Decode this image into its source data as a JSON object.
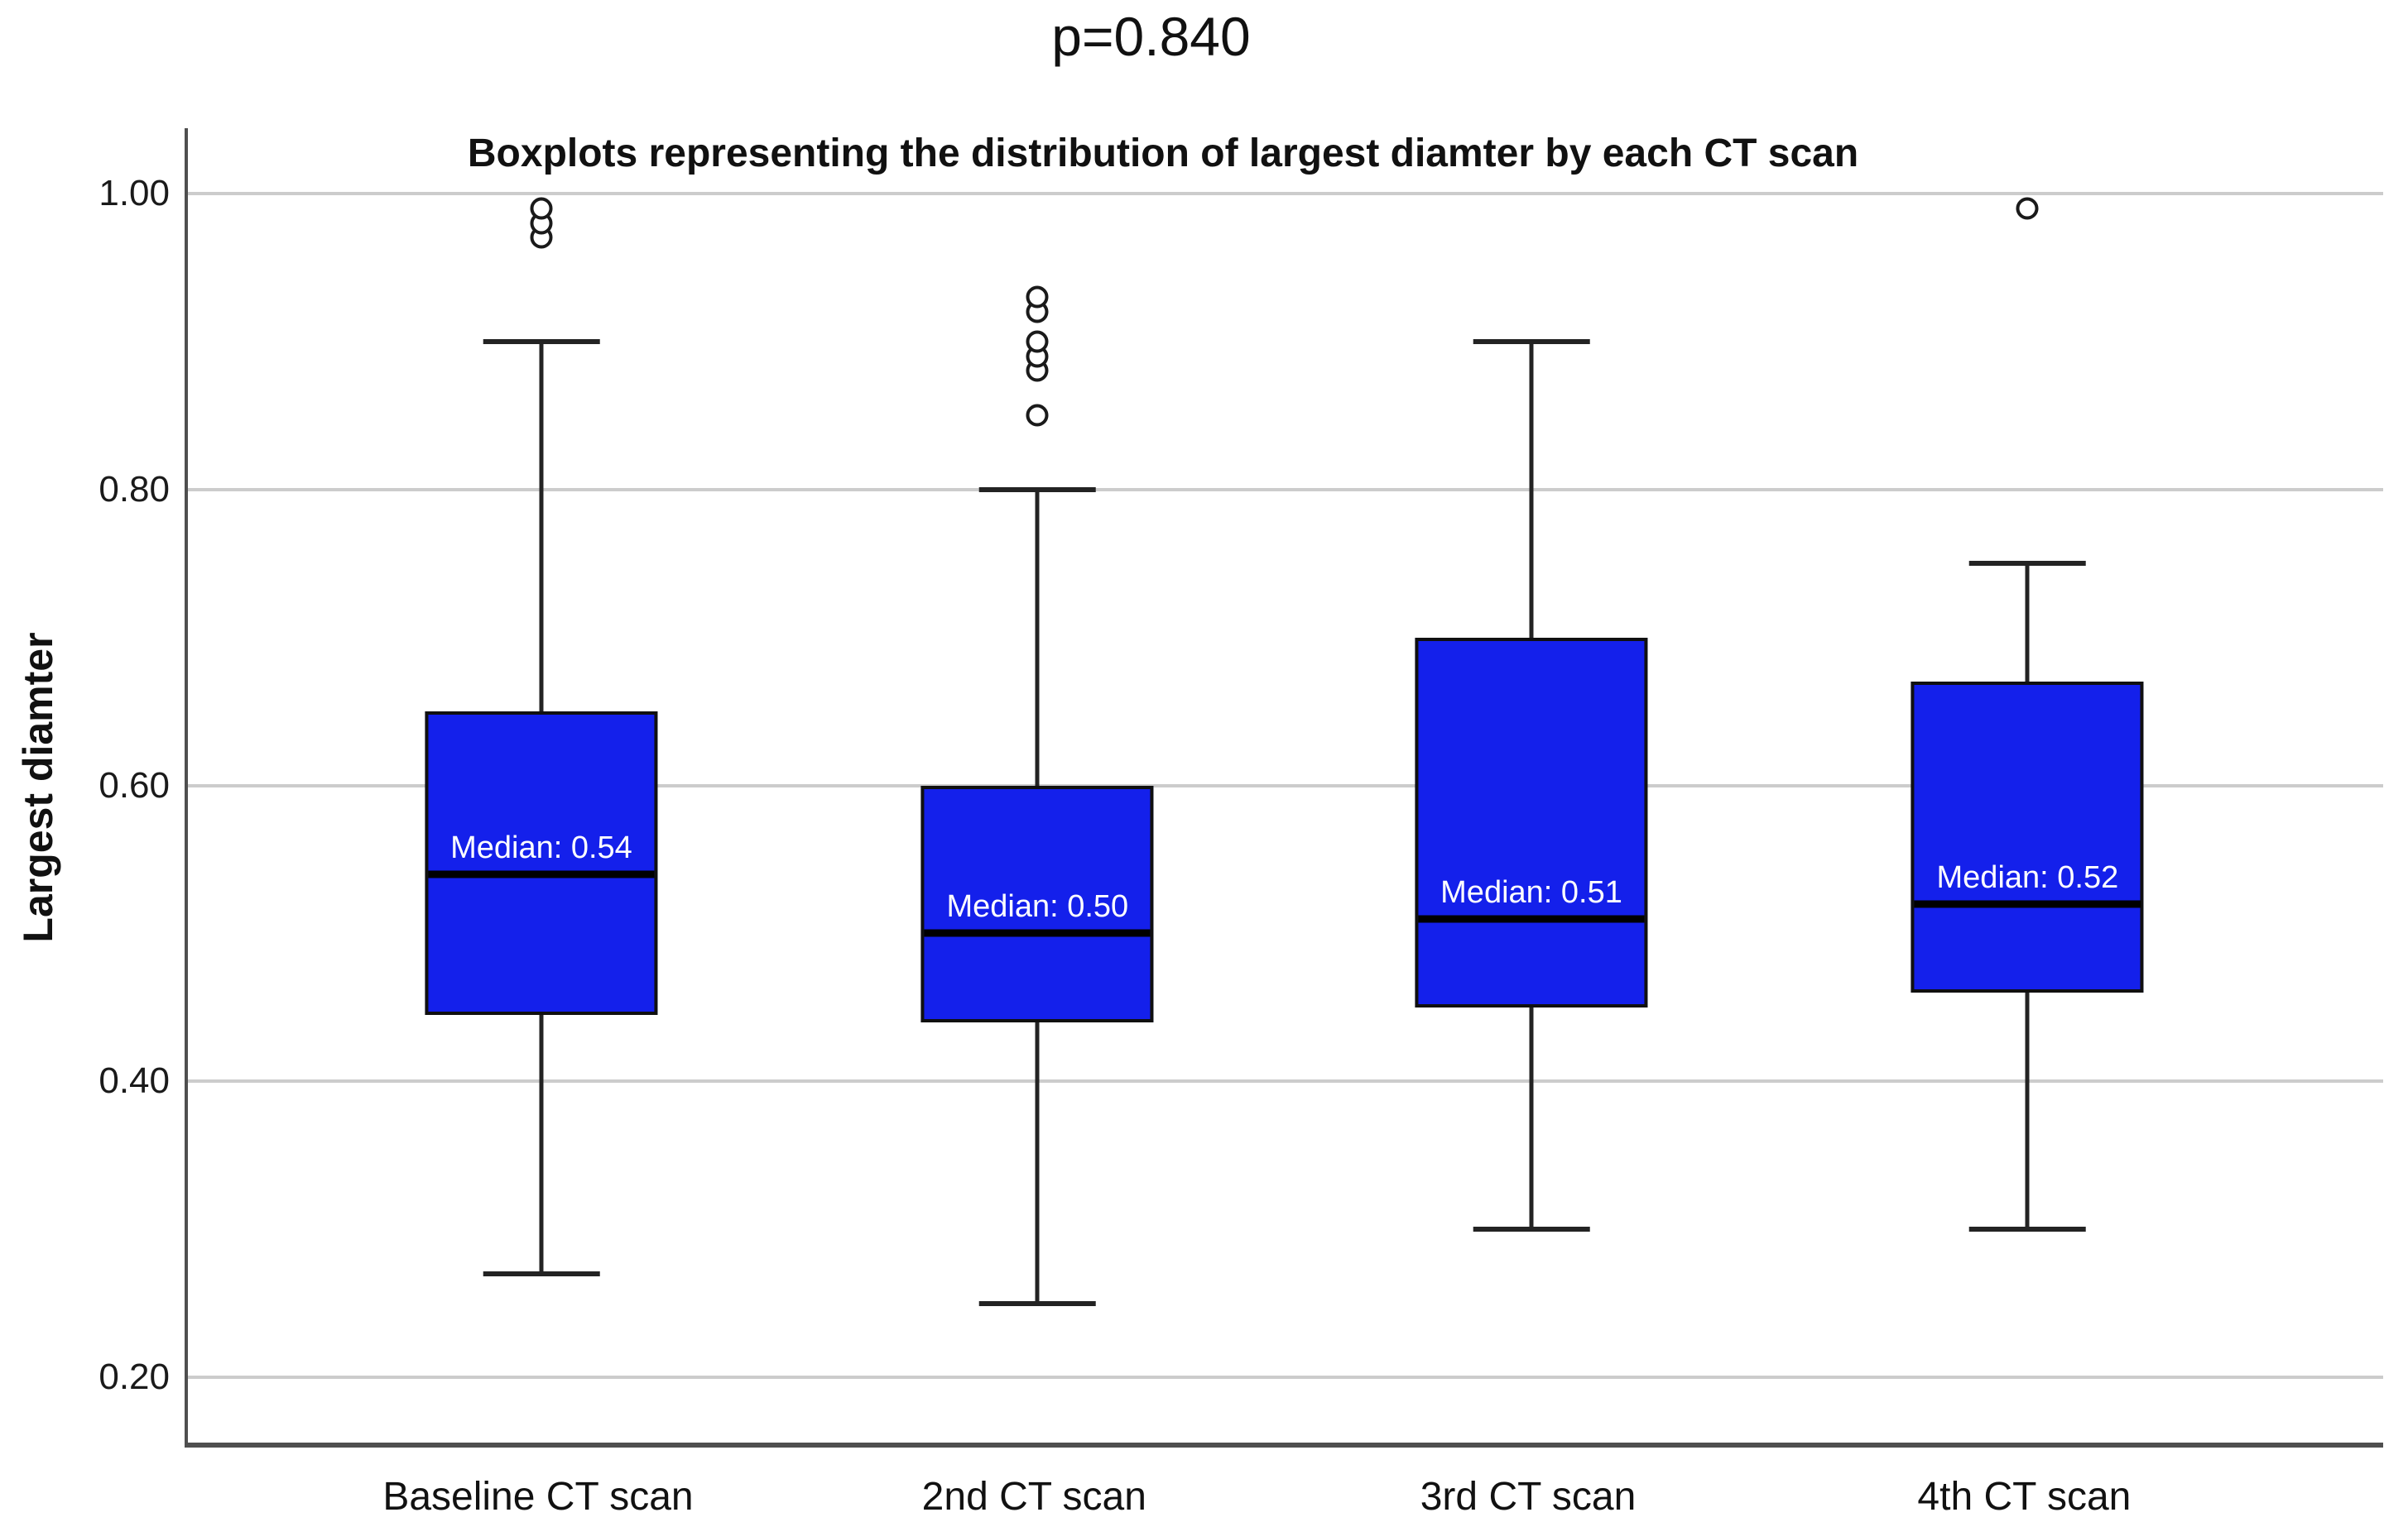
{
  "page": {
    "p_value_title": "p=0.840"
  },
  "chart_data": {
    "type": "boxplot",
    "title": "Boxplots representing the distribution of largest diamter by each CT scan",
    "xlabel": "",
    "ylabel": "Largest diamter",
    "ylim": [
      0.156,
      1.044
    ],
    "yticks": [
      0.2,
      0.4,
      0.6,
      0.8,
      1.0
    ],
    "ytick_labels": [
      "0.20",
      "0.40",
      "0.60",
      "0.80",
      "1.00"
    ],
    "grid": "horizontal gridlines at each y tick",
    "legend": "none",
    "categories": [
      "Baseline CT scan",
      "2nd CT scan",
      "3rd CT scan",
      "4th CT scan"
    ],
    "series": [
      {
        "category": "Baseline CT scan",
        "whisker_low": 0.27,
        "q1": 0.445,
        "median": 0.54,
        "q3": 0.65,
        "whisker_high": 0.9,
        "outliers": [
          0.97,
          0.98,
          0.99
        ],
        "median_label": "Median: 0.54"
      },
      {
        "category": "2nd CT scan",
        "whisker_low": 0.25,
        "q1": 0.44,
        "median": 0.5,
        "q3": 0.6,
        "whisker_high": 0.8,
        "outliers": [
          0.85,
          0.88,
          0.89,
          0.9,
          0.92,
          0.93
        ],
        "median_label": "Median: 0.50"
      },
      {
        "category": "3rd CT scan",
        "whisker_low": 0.3,
        "q1": 0.45,
        "median": 0.51,
        "q3": 0.7,
        "whisker_high": 0.9,
        "outliers": [],
        "median_label": "Median: 0.51"
      },
      {
        "category": "4th CT scan",
        "whisker_low": 0.3,
        "q1": 0.46,
        "median": 0.52,
        "q3": 0.67,
        "whisker_high": 0.75,
        "outliers": [
          0.99
        ],
        "median_label": "Median: 0.52"
      }
    ],
    "colors": {
      "box_fill": "#1420EB",
      "box_border": "#101010",
      "median_line": "#000000",
      "median_label_text": "#ffffff",
      "whisker": "#232323",
      "gridline": "#cccccc",
      "axis_line": "#4f4f4f",
      "outlier_stroke": "#1a1a1a",
      "background": "#ffffff"
    }
  }
}
